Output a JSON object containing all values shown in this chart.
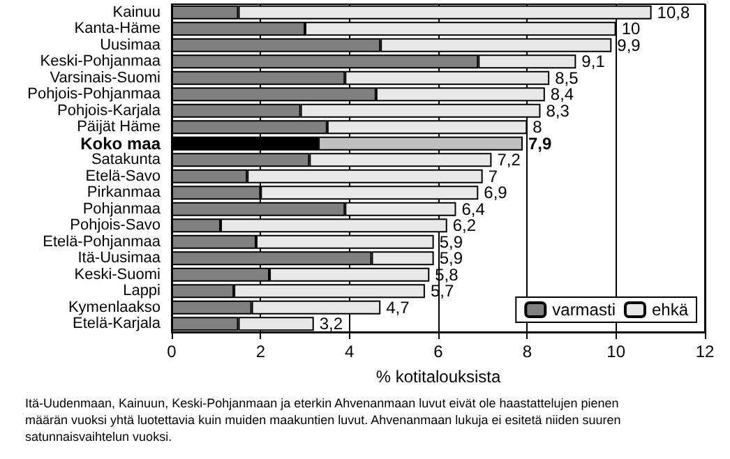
{
  "chart_data": {
    "type": "bar",
    "orientation": "horizontal",
    "stacked": true,
    "categories": [
      "Kainuu",
      "Kanta-Häme",
      "Uusimaa",
      "Keski-Pohjanmaa",
      "Varsinais-Suomi",
      "Pohjois-Pohjanmaa",
      "Pohjois-Karjala",
      "Päijät Häme",
      "Koko maa",
      "Satakunta",
      "Etelä-Savo",
      "Pirkanmaa",
      "Pohjanmaa",
      "Pohjois-Savo",
      "Etelä-Pohjanmaa",
      "Itä-Uusimaa",
      "Keski-Suomi",
      "Lappi",
      "Kymenlaakso",
      "Etelä-Karjala"
    ],
    "series": [
      {
        "name": "varmasti",
        "color": "#808080",
        "colors": [
          "#808080",
          "#808080",
          "#808080",
          "#808080",
          "#808080",
          "#808080",
          "#808080",
          "#808080",
          "#000000",
          "#808080",
          "#808080",
          "#808080",
          "#808080",
          "#808080",
          "#808080",
          "#808080",
          "#808080",
          "#808080",
          "#808080",
          "#808080"
        ],
        "values": [
          1.5,
          3.0,
          4.7,
          6.9,
          3.9,
          4.6,
          2.9,
          3.5,
          3.3,
          3.1,
          1.7,
          2.0,
          3.9,
          1.1,
          1.9,
          4.5,
          2.2,
          1.4,
          1.8,
          1.5
        ]
      },
      {
        "name": "ehkä",
        "color": "#e8e8e8",
        "colors": [
          "#e8e8e8",
          "#e8e8e8",
          "#e8e8e8",
          "#e8e8e8",
          "#e8e8e8",
          "#e8e8e8",
          "#e8e8e8",
          "#e8e8e8",
          "#c0c0c0",
          "#e8e8e8",
          "#e8e8e8",
          "#e8e8e8",
          "#e8e8e8",
          "#e8e8e8",
          "#e8e8e8",
          "#e8e8e8",
          "#e8e8e8",
          "#e8e8e8",
          "#e8e8e8",
          "#e8e8e8"
        ],
        "values": [
          9.3,
          7.0,
          5.2,
          2.2,
          4.6,
          3.8,
          5.4,
          4.5,
          4.6,
          4.1,
          5.3,
          4.9,
          2.5,
          5.1,
          4.0,
          1.4,
          3.6,
          4.3,
          2.9,
          1.7
        ]
      }
    ],
    "totals": [
      "10,8",
      "10",
      "9,9",
      "9,1",
      "8,5",
      "8,4",
      "8,3",
      "8",
      "7,9",
      "7,2",
      "7",
      "6,9",
      "6,4",
      "6,2",
      "5,9",
      "5,9",
      "5,8",
      "5,7",
      "4,7",
      "3,2"
    ],
    "xlim": [
      0,
      12
    ],
    "xticks": [
      0,
      2,
      4,
      6,
      8,
      10,
      12
    ],
    "xlabel": "% kotitalouksista",
    "grid": "x",
    "legend": "bottom right",
    "annotations": [
      "Itä-Uudenmaan, Kainuun, Keski-Pohjanmaan ja eterkin Ahvenanmaan luvut eivät ole haastattelujen pienen määrän vuoksi yhtä luotettavia kuin muiden maakuntien luvut. Ahvenanmaan lukuja ei esitetä niiden suuren satunnaisvaihtelun vuoksi."
    ]
  }
}
